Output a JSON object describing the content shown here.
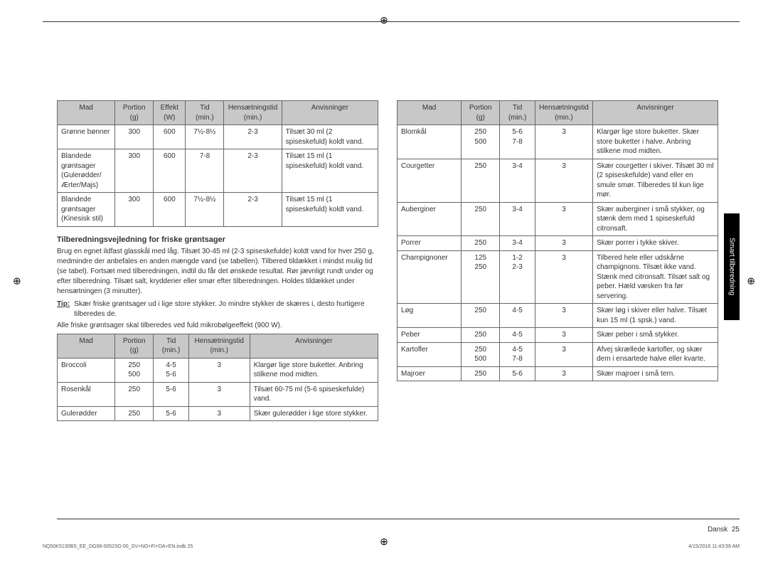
{
  "page": {
    "lang_label": "Dansk",
    "page_number": "25",
    "footer_left": "NQ50K5130BS_EE_DG68-00523G-00_SV+NO+FI+DA+EN.indb   25",
    "footer_right": "4/15/2016   11:43:59 AM",
    "side_tab": "Smart tilberedning"
  },
  "table1": {
    "headers": [
      "Mad",
      "Portion (g)",
      "Effekt (W)",
      "Tid (min.)",
      "Hensætningstid (min.)",
      "Anvisninger"
    ],
    "rows": [
      [
        "Grønne bønner",
        "300",
        "600",
        "7½-8½",
        "2-3",
        "Tilsæt 30 ml (2 spiseskefuld) koldt vand."
      ],
      [
        "Blandede grøntsager (Gulerødder/ Ærter/Majs)",
        "300",
        "600",
        "7-8",
        "2-3",
        "Tilsæt 15 ml (1 spiseskefuld) koldt vand."
      ],
      [
        "Blandede grøntsager (Kinesisk stil)",
        "300",
        "600",
        "7½-8½",
        "2-3",
        "Tilsæt 15 ml (1 spiseskefuld) koldt vand."
      ]
    ]
  },
  "section1": {
    "title": "Tilberedningsvejledning for friske grøntsager",
    "p1": "Brug en egnet ildfast glasskål med låg. Tilsæt 30-45 ml (2-3 spiseskefulde) koldt vand for hver 250 g, medmindre der anbefales en anden mængde vand (se tabellen). Tilbered tildækket i mindst mulig tid (se tabel). Fortsæt med tilberedningen, indtil du får det ønskede resultat. Rør jævnligt rundt under og efter tilberedning. Tilsæt salt, krydderier eller smør efter tilberedningen. Holdes tildækket under hensætningen (3 minutter).",
    "tip_label": "Tip:",
    "tip_text": "Skær friske grøntsager ud i lige store stykker. Jo mindre stykker de skæres i, desto hurtigere tilberedes de.",
    "p2": "Alle friske grøntsager skal tilberedes ved fuld mikrobølgeeffekt (900 W)."
  },
  "table2": {
    "headers": [
      "Mad",
      "Portion (g)",
      "Tid (min.)",
      "Hensætningstid (min.)",
      "Anvisninger"
    ],
    "rows": [
      [
        "Broccoli",
        "250\n500",
        "4-5\n5-6",
        "3",
        "Klargør lige store buketter. Anbring stilkene mod midten."
      ],
      [
        "Rosenkål",
        "250",
        "5-6",
        "3",
        "Tilsæt 60-75 ml (5-6 spiseskefulde) vand."
      ],
      [
        "Gulerødder",
        "250",
        "5-6",
        "3",
        "Skær gulerødder i lige store stykker."
      ]
    ]
  },
  "table3": {
    "headers": [
      "Mad",
      "Portion (g)",
      "Tid (min.)",
      "Hensætningstid (min.)",
      "Anvisninger"
    ],
    "rows": [
      [
        "Blomkål",
        "250\n500",
        "5-6\n7-8",
        "3",
        "Klargør lige store buketter. Skær store buketter i halve. Anbring stilkene mod midten."
      ],
      [
        "Courgetter",
        "250",
        "3-4",
        "3",
        "Skær courgetter i skiver. Tilsæt 30 ml (2 spiseskefulde) vand eller en smule smør. Tilberedes til kun lige mør."
      ],
      [
        "Auberginer",
        "250",
        "3-4",
        "3",
        "Skær auberginer i små stykker, og stænk dem med 1 spiseskefuld citronsaft."
      ],
      [
        "Porrer",
        "250",
        "3-4",
        "3",
        "Skær porrer i tykke skiver."
      ],
      [
        "Champignoner",
        "125\n250",
        "1-2\n2-3",
        "3",
        "Tilbered hele eller udskårne champignons. Tilsæt ikke vand. Stænk med citronsaft. Tilsæt salt og peber. Hæld væsken fra før servering."
      ],
      [
        "Løg",
        "250",
        "4-5",
        "3",
        "Skær løg i skiver eller halve. Tilsæt kun 15 ml (1 spsk.) vand."
      ],
      [
        "Peber",
        "250",
        "4-5",
        "3",
        "Skær peber i små stykker."
      ],
      [
        "Kartofler",
        "250\n500",
        "4-5\n7-8",
        "3",
        "Afvej skrællede kartofler, og skær dem i ensartede halve eller kvarte."
      ],
      [
        "Majroer",
        "250",
        "5-6",
        "3",
        "Skær majroer i små tern."
      ]
    ]
  },
  "colwidths": {
    "t1": [
      "18%",
      "12%",
      "10%",
      "12%",
      "18%",
      "30%"
    ],
    "t2": [
      "18%",
      "12%",
      "11%",
      "19%",
      "40%"
    ],
    "t3": [
      "20%",
      "12%",
      "11%",
      "18%",
      "39%"
    ]
  }
}
